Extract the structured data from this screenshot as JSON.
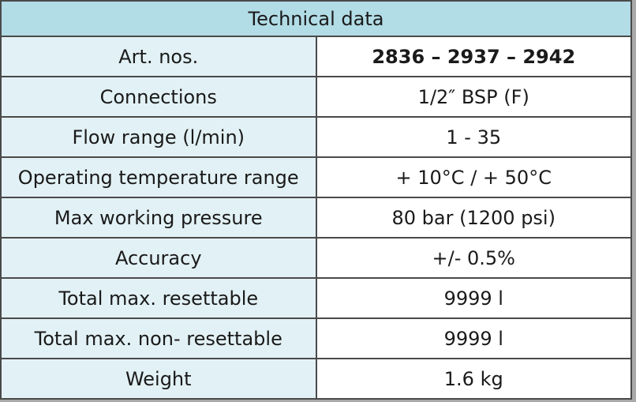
{
  "table": {
    "title": "Technical data",
    "rows": [
      [
        "Art. nos.",
        "2836 – 2937 – 2942"
      ],
      [
        "Connections",
        "1/2″ BSP (F)"
      ],
      [
        "Flow range (l/min)",
        "1 - 35"
      ],
      [
        "Operating temperature range",
        "+ 10°C / + 50°C"
      ],
      [
        "Max working pressure",
        "80 bar (1200 psi)"
      ],
      [
        "Accuracy",
        "+/- 0.5%"
      ],
      [
        "Total max. resettable",
        "9999 l"
      ],
      [
        "Total max. non- resettable",
        "9999 l"
      ],
      [
        "Weight",
        "1.6 kg"
      ]
    ]
  }
}
